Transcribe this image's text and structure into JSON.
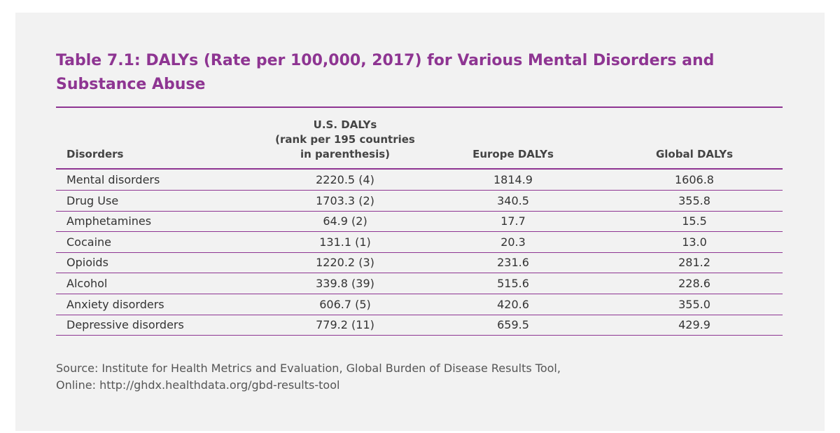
{
  "title": [
    "Table 7.1:  DALYs (Rate per 100,000, 2017) for Various Mental Disorders and",
    "Substance Abuse"
  ],
  "table": {
    "header": {
      "disorders": "Disorders",
      "us": [
        "U.S. DALYs",
        "(rank per 195 countries",
        "in parenthesis)"
      ],
      "europe": "Europe DALYs",
      "global": "Global DALYs"
    },
    "rows": [
      [
        "Mental disorders",
        "2220.5 (4)",
        "1814.9",
        "1606.8"
      ],
      [
        "Drug Use",
        "1703.3 (2)",
        "340.5",
        "355.8"
      ],
      [
        "Amphetamines",
        "64.9 (2)",
        "17.7",
        "15.5"
      ],
      [
        "Cocaine",
        "131.1 (1)",
        "20.3",
        "13.0"
      ],
      [
        "Opioids",
        "1220.2 (3)",
        "231.6",
        "281.2"
      ],
      [
        "Alcohol",
        "339.8 (39)",
        "515.6",
        "228.6"
      ],
      [
        "Anxiety disorders",
        "606.7 (5)",
        "420.6",
        "355.0"
      ],
      [
        "Depressive disorders",
        "779.2 (11)",
        "659.5",
        "429.9"
      ]
    ]
  },
  "source": [
    "Source: Institute for Health Metrics and Evaluation, Global Burden of Disease Results Tool,",
    "Online: http://ghdx.healthdata.org/gbd-results-tool"
  ]
}
